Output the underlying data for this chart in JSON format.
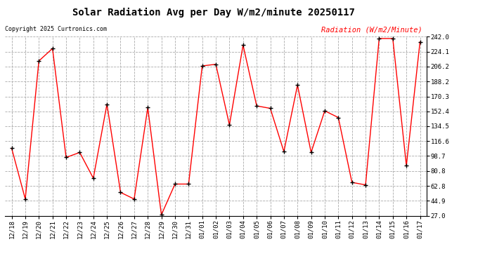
{
  "title": "Solar Radiation Avg per Day W/m2/minute 20250117",
  "copyright": "Copyright 2025 Curtronics.com",
  "legend_label": "Radiation (W/m2/Minute)",
  "dates": [
    "12/18",
    "12/19",
    "12/20",
    "12/21",
    "12/22",
    "12/23",
    "12/24",
    "12/25",
    "12/26",
    "12/27",
    "12/28",
    "12/29",
    "12/30",
    "12/31",
    "01/01",
    "01/02",
    "01/03",
    "01/04",
    "01/05",
    "01/06",
    "01/07",
    "01/08",
    "01/09",
    "01/10",
    "01/11",
    "01/12",
    "01/13",
    "01/14",
    "01/15",
    "01/16",
    "01/17"
  ],
  "values": [
    108,
    47,
    213,
    228,
    97,
    103,
    72,
    161,
    55,
    47,
    157,
    28,
    65,
    65,
    207,
    209,
    136,
    232,
    159,
    156,
    104,
    184,
    103,
    153,
    145,
    67,
    64,
    240,
    240,
    87,
    236
  ],
  "line_color": "red",
  "marker": "+",
  "marker_color": "black",
  "background_color": "#ffffff",
  "grid_color": "#aaaaaa",
  "yticks": [
    27.0,
    44.9,
    62.8,
    80.8,
    98.7,
    116.6,
    134.5,
    152.4,
    170.3,
    188.2,
    206.2,
    224.1,
    242.0
  ],
  "ylim": [
    27.0,
    242.0
  ],
  "title_fontsize": 10,
  "axis_fontsize": 6.5,
  "copyright_fontsize": 6,
  "legend_fontsize": 7.5
}
